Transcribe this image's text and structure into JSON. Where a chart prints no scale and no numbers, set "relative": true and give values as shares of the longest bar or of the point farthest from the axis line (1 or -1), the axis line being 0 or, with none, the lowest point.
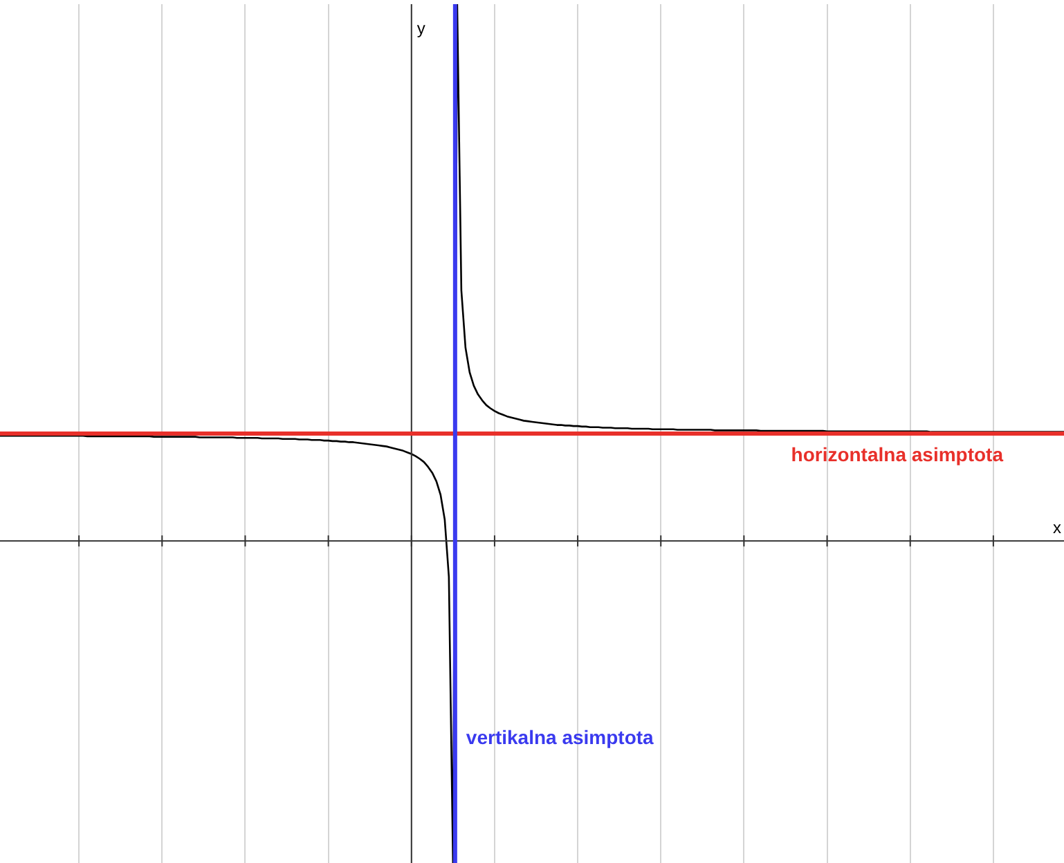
{
  "chart_data": {
    "type": "line",
    "relative": true,
    "xlabel": "x",
    "ylabel": "y",
    "grid": "x",
    "legend": false,
    "marker": "none",
    "line_style": "solid",
    "categories": [
      null,
      null,
      null,
      null,
      null,
      null,
      null,
      null,
      null,
      null,
      null,
      null,
      null,
      null,
      null,
      null,
      null,
      null,
      null,
      null,
      null,
      null,
      null,
      null,
      null,
      null,
      null,
      null,
      null,
      null,
      null,
      null,
      null,
      null,
      null,
      null,
      null,
      null,
      null,
      null,
      null,
      null,
      null,
      null,
      null,
      null,
      null,
      null,
      null,
      null,
      null,
      null,
      null,
      null,
      null,
      null,
      null,
      null,
      null,
      null,
      null,
      null,
      null,
      null,
      null,
      null,
      null,
      null,
      null,
      null,
      null,
      null,
      null,
      null,
      null,
      null,
      null,
      null,
      null,
      null,
      null,
      null,
      null,
      null,
      null,
      null,
      null,
      null,
      null,
      null,
      null,
      null,
      null,
      null,
      null,
      null,
      null,
      null,
      null,
      null,
      null,
      null,
      null,
      null,
      null,
      null,
      null,
      null,
      null,
      null,
      null,
      null,
      null,
      null,
      null,
      null,
      null,
      null,
      null,
      null,
      null,
      null,
      null,
      null,
      null,
      null,
      null,
      null,
      null,
      null,
      null,
      null,
      null,
      null,
      null,
      null,
      null,
      null,
      null,
      null,
      null,
      null,
      null,
      null,
      null,
      null,
      null,
      null,
      null,
      null,
      null,
      null,
      null,
      null,
      null,
      null,
      null,
      null,
      null,
      null,
      null,
      null,
      null,
      null,
      null,
      null,
      null,
      null,
      null,
      null,
      null,
      null,
      null,
      null,
      null,
      null,
      null,
      null,
      null,
      null,
      null,
      null,
      null,
      null,
      null,
      null,
      null,
      null,
      null,
      null,
      null,
      null,
      null,
      null,
      null,
      null,
      null,
      null,
      null,
      null,
      null,
      null,
      null,
      null,
      null,
      null,
      null,
      null,
      null,
      null,
      null,
      null,
      null,
      null,
      null,
      null,
      null,
      null,
      null,
      null,
      null,
      null,
      null,
      null,
      null,
      null,
      null,
      null,
      null,
      null,
      null,
      null,
      null,
      null,
      null,
      null,
      null,
      null,
      null,
      null,
      null,
      null,
      null,
      null,
      null,
      null,
      null,
      null,
      null,
      null,
      null,
      null,
      null,
      null,
      null,
      null,
      null
    ],
    "series": [
      {
        "color": "#000000",
        "values": [
          0.196,
          0.196,
          0.196,
          0.196,
          0.196,
          0.196,
          0.196,
          0.196,
          0.196,
          0.196,
          0.196,
          0.196,
          0.196,
          0.196,
          0.196,
          0.196,
          0.196,
          0.196,
          0.196,
          0.196,
          0.196,
          0.195,
          0.195,
          0.195,
          0.195,
          0.195,
          0.195,
          0.195,
          0.195,
          0.195,
          0.195,
          0.195,
          0.195,
          0.195,
          0.195,
          0.195,
          0.195,
          0.194,
          0.194,
          0.194,
          0.194,
          0.194,
          0.194,
          0.194,
          0.194,
          0.194,
          0.194,
          0.194,
          0.193,
          0.193,
          0.193,
          0.193,
          0.193,
          0.193,
          0.193,
          0.193,
          0.193,
          0.192,
          0.192,
          0.192,
          0.192,
          0.192,
          0.192,
          0.191,
          0.191,
          0.191,
          0.191,
          0.191,
          0.19,
          0.19,
          0.19,
          0.19,
          0.189,
          0.189,
          0.189,
          0.188,
          0.188,
          0.188,
          0.187,
          0.187,
          0.186,
          0.186,
          0.185,
          0.185,
          0.184,
          0.184,
          0.183,
          0.182,
          0.181,
          0.18,
          0.179,
          0.178,
          0.177,
          0.176,
          0.174,
          0.172,
          0.17,
          0.168,
          0.165,
          0.162,
          0.158,
          0.153,
          0.147,
          0.138,
          0.127,
          0.111,
          0.086,
          0.04,
          -0.067,
          -0.6,
          1,
          0.467,
          0.36,
          0.314,
          0.289,
          0.273,
          0.262,
          0.253,
          0.247,
          0.242,
          0.238,
          0.235,
          0.232,
          0.23,
          0.228,
          0.226,
          0.224,
          0.223,
          0.222,
          0.221,
          0.22,
          0.219,
          0.218,
          0.217,
          0.216,
          0.216,
          0.215,
          0.215,
          0.214,
          0.214,
          0.213,
          0.213,
          0.212,
          0.212,
          0.212,
          0.211,
          0.211,
          0.211,
          0.21,
          0.21,
          0.21,
          0.21,
          0.209,
          0.209,
          0.209,
          0.209,
          0.209,
          0.208,
          0.208,
          0.208,
          0.208,
          0.208,
          0.208,
          0.207,
          0.207,
          0.207,
          0.207,
          0.207,
          0.207,
          0.207,
          0.207,
          0.207,
          0.206,
          0.206,
          0.206,
          0.206,
          0.206,
          0.206,
          0.206,
          0.206,
          0.206,
          0.206,
          0.206,
          0.205,
          0.205,
          0.205,
          0.205,
          0.205,
          0.205,
          0.205,
          0.205,
          0.205,
          0.205,
          0.205,
          0.205,
          0.205,
          0.205,
          0.205,
          0.205,
          0.204,
          0.204,
          0.204,
          0.204,
          0.204,
          0.204,
          0.204,
          0.204,
          0.204,
          0.204,
          0.204,
          0.204,
          0.204,
          0.204,
          0.204,
          0.204,
          0.204,
          0.204,
          0.204,
          0.204,
          0.204,
          0.204,
          0.204,
          0.204,
          0.204,
          0.203,
          0.203,
          0.203,
          0.203,
          0.203,
          0.203,
          0.203,
          0.203,
          0.203,
          0.203,
          0.203,
          0.203,
          0.203,
          0.203,
          0.203,
          0.203,
          0.203,
          0.203,
          0.203,
          0.203,
          0.203,
          0.203,
          0.203,
          0.203,
          0.203,
          0.203,
          0.203,
          0.203,
          0.203,
          0.203,
          0.203,
          0.203,
          0.203
        ]
      }
    ],
    "ref_lines": [
      {
        "axis": "y",
        "value": 0.2,
        "label": "horizontalna asimptota",
        "color": "#e8302a"
      },
      {
        "axis": "x",
        "label": "vertikalna asimptota",
        "color": "#3a3aef"
      }
    ]
  }
}
